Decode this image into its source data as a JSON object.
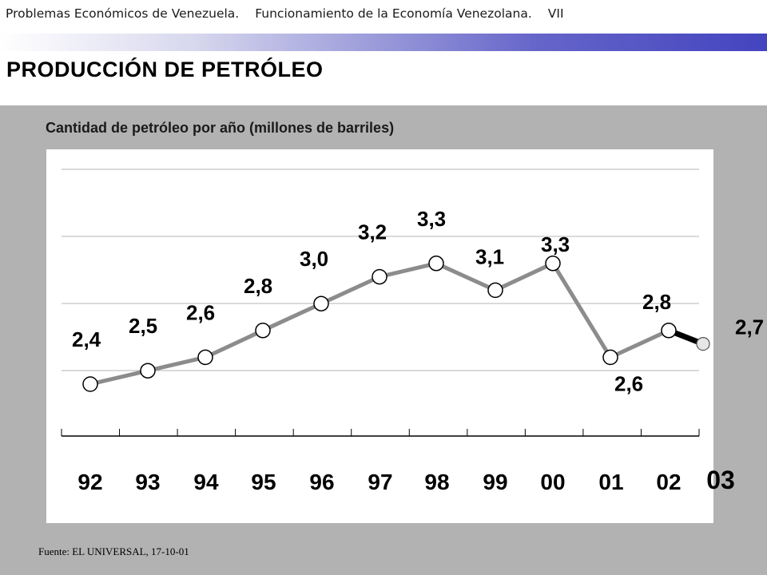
{
  "header": {
    "part1": "Problemas Económicos de Venezuela.",
    "part2": "Funcionamiento de la Economía Venezolana.",
    "part3": "VII"
  },
  "page_title": "PRODUCCIÓN DE PETRÓLEO",
  "source": "Fuente: EL UNIVERSAL,  17-10-01",
  "colors": {
    "line": "#8c8c8c",
    "projection_line": "#000000",
    "background_panel": "#b2b2b2",
    "header_gradient_end": "#4444c0"
  },
  "chart_data": {
    "type": "line",
    "title": "Cantidad de petróleo por año (millones de barriles)",
    "xlabel": "",
    "ylabel": "",
    "grid": true,
    "categories": [
      "92",
      "93",
      "94",
      "95",
      "96",
      "97",
      "98",
      "99",
      "00",
      "01",
      "02",
      "03"
    ],
    "values": [
      2.4,
      2.5,
      2.6,
      2.8,
      3.0,
      3.2,
      3.3,
      3.1,
      3.3,
      2.6,
      2.8,
      2.7
    ],
    "data_labels": [
      "2,4",
      "2,5",
      "2,6",
      "2,8",
      "3,0",
      "3,2",
      "3,3",
      "3,1",
      "3,3",
      "2,6",
      "2,8",
      "2,7"
    ],
    "projected_from_index": 10
  }
}
